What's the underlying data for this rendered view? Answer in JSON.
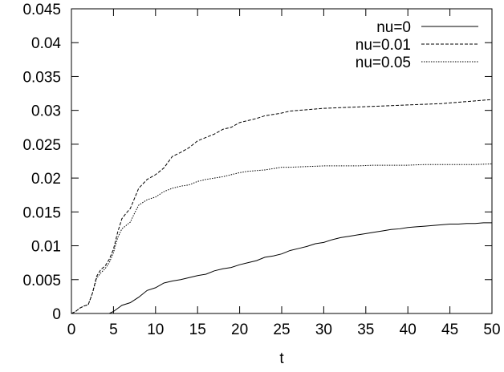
{
  "chart_data": {
    "type": "line",
    "xlabel": "t",
    "ylabel": "",
    "xlim": [
      0,
      50
    ],
    "ylim": [
      0,
      0.045
    ],
    "grid": false,
    "legend_position": "top-right",
    "x_ticks": [
      "0",
      "5",
      "10",
      "15",
      "20",
      "25",
      "30",
      "35",
      "40",
      "45",
      "50"
    ],
    "y_ticks": [
      "0",
      "0.005",
      "0.01",
      "0.015",
      "0.02",
      "0.025",
      "0.03",
      "0.035",
      "0.04",
      "0.045"
    ],
    "series": [
      {
        "name": "nu=0",
        "style": "solid",
        "x": [
          0,
          4.5,
          5,
          6,
          7,
          8,
          9,
          10,
          11,
          12,
          13,
          14,
          15,
          16,
          17,
          18,
          19,
          20,
          21,
          22,
          23,
          24,
          25,
          26,
          27,
          28,
          29,
          30,
          31,
          32,
          33,
          34,
          35,
          36,
          37,
          38,
          39,
          40,
          41,
          42,
          43,
          44,
          45,
          46,
          47,
          48,
          49,
          50
        ],
        "y": [
          0,
          0,
          0.0003,
          0.0012,
          0.0016,
          0.0024,
          0.0034,
          0.0038,
          0.0045,
          0.0048,
          0.005,
          0.0053,
          0.0056,
          0.0058,
          0.0063,
          0.0066,
          0.0068,
          0.0072,
          0.0075,
          0.0078,
          0.0083,
          0.0085,
          0.0088,
          0.0093,
          0.0096,
          0.0099,
          0.0103,
          0.0105,
          0.0109,
          0.0112,
          0.0114,
          0.0116,
          0.0118,
          0.012,
          0.0122,
          0.0124,
          0.0125,
          0.0127,
          0.0128,
          0.0129,
          0.013,
          0.0131,
          0.0132,
          0.0132,
          0.0133,
          0.0133,
          0.0134,
          0.0134
        ]
      },
      {
        "name": "nu=0.01",
        "style": "dashed",
        "x": [
          0,
          0.5,
          1,
          1.5,
          2,
          2.5,
          3,
          3.5,
          4,
          4.5,
          5,
          5.5,
          6,
          6.5,
          7,
          7.5,
          8,
          9,
          10,
          11,
          12,
          13,
          14,
          15,
          16,
          17,
          18,
          19,
          20,
          21,
          22,
          23,
          24,
          25,
          26,
          27,
          28,
          29,
          30,
          32,
          34,
          36,
          38,
          40,
          42,
          44,
          46,
          48,
          50
        ],
        "y": [
          0,
          0.0003,
          0.0008,
          0.0011,
          0.0013,
          0.003,
          0.0055,
          0.0065,
          0.007,
          0.008,
          0.0095,
          0.012,
          0.014,
          0.0148,
          0.0155,
          0.017,
          0.0185,
          0.0198,
          0.0205,
          0.0215,
          0.0232,
          0.0238,
          0.0245,
          0.0255,
          0.026,
          0.0265,
          0.0272,
          0.0275,
          0.0282,
          0.0285,
          0.0288,
          0.0292,
          0.0294,
          0.0296,
          0.0299,
          0.03,
          0.0301,
          0.0302,
          0.0303,
          0.0304,
          0.0305,
          0.0306,
          0.0307,
          0.0308,
          0.0309,
          0.031,
          0.0312,
          0.0314,
          0.0316
        ]
      },
      {
        "name": "nu=0.05",
        "style": "dotted",
        "x": [
          0,
          0.5,
          1,
          1.5,
          2,
          2.5,
          3,
          3.5,
          4,
          4.5,
          5,
          5.5,
          6,
          6.5,
          7,
          7.5,
          8,
          9,
          10,
          11,
          12,
          13,
          14,
          15,
          16,
          17,
          18,
          19,
          20,
          21,
          22,
          23,
          24,
          25,
          26,
          28,
          30,
          32,
          34,
          36,
          38,
          40,
          42,
          44,
          46,
          48,
          50
        ],
        "y": [
          0,
          0.0003,
          0.0008,
          0.0011,
          0.0013,
          0.003,
          0.0052,
          0.006,
          0.0066,
          0.0075,
          0.009,
          0.0112,
          0.0125,
          0.013,
          0.0135,
          0.0148,
          0.016,
          0.0168,
          0.0172,
          0.018,
          0.0185,
          0.0188,
          0.019,
          0.0195,
          0.0198,
          0.02,
          0.0202,
          0.0205,
          0.0208,
          0.021,
          0.0211,
          0.0212,
          0.0214,
          0.0216,
          0.0216,
          0.0217,
          0.0218,
          0.0218,
          0.0218,
          0.0219,
          0.0219,
          0.0219,
          0.022,
          0.022,
          0.022,
          0.022,
          0.0221
        ]
      }
    ]
  }
}
